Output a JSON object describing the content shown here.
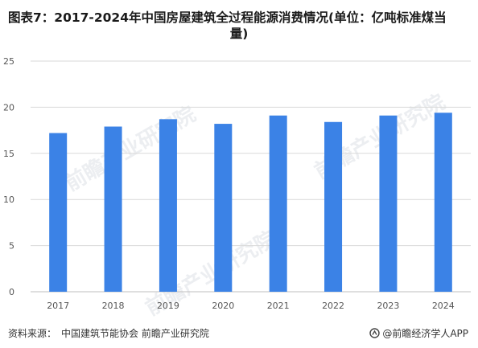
{
  "title_line1": "图表7：2017-2024年中国房屋建筑全过程能源消费情况(单位：亿吨标准煤当",
  "title_line2": "量)",
  "footer": {
    "source_label": "资料来源：",
    "source_text": "中国建筑节能协会 前瞻产业研究院",
    "brand": "@前瞻经济学人APP",
    "brand_icon": "qianzhan-logo-icon"
  },
  "watermarks": [
    "前瞻产业研究院",
    "前瞻产业研究院",
    "前瞻产业研究院"
  ],
  "colors": {
    "bar": "#3b82e6",
    "grid": "#d9d9d9",
    "axis_text": "#555555"
  },
  "chart_data": {
    "type": "bar",
    "categories": [
      "2017",
      "2018",
      "2019",
      "2020",
      "2021",
      "2022",
      "2023",
      "2024"
    ],
    "values": [
      17.2,
      17.9,
      18.7,
      18.2,
      19.1,
      18.4,
      19.1,
      19.4
    ],
    "yticks": [
      0,
      5,
      10,
      15,
      20,
      25
    ],
    "ylim": [
      0,
      25
    ],
    "grid": true,
    "legend": "none"
  }
}
